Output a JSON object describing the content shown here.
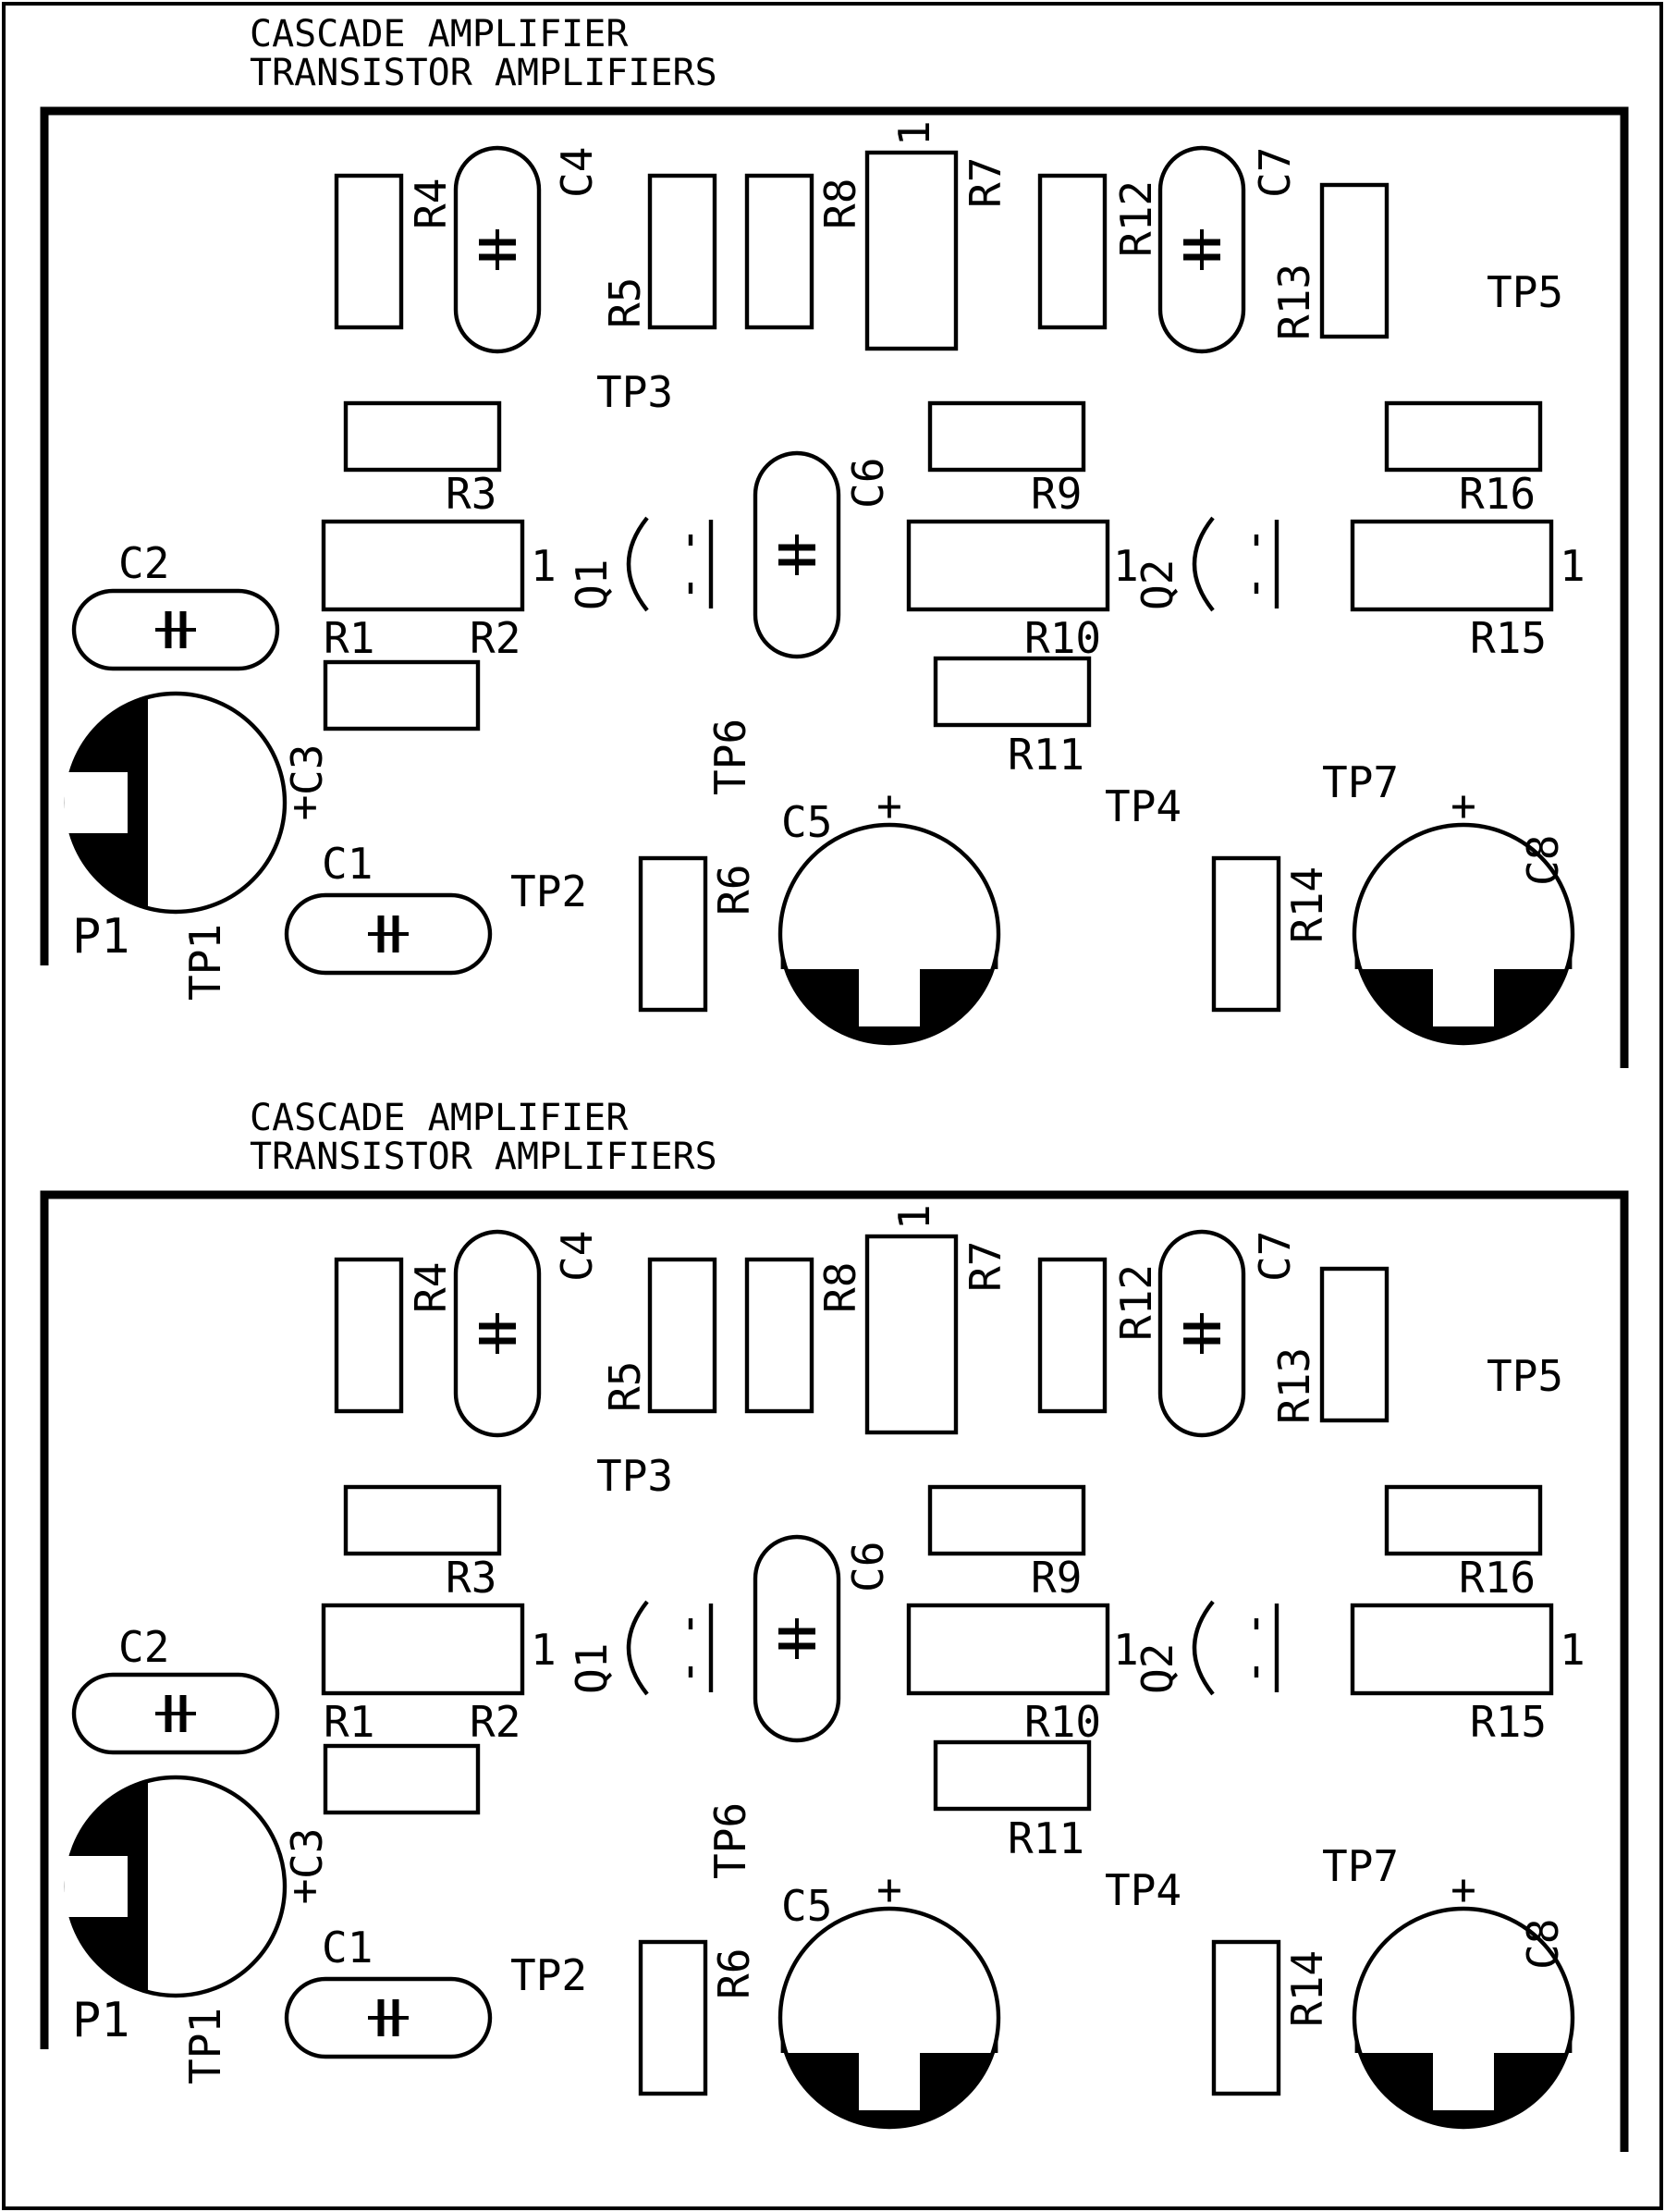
{
  "panels": [
    {
      "title_line1": "CASCADE AMPLIFIER",
      "title_line2": "TRANSISTOR AMPLIFIERS",
      "labels": {
        "R1": "R1",
        "R2": "R2",
        "R3": "R3",
        "R4": "R4",
        "R5": "R5",
        "R6": "R6",
        "R7": "R7",
        "R8": "R8",
        "R9": "R9",
        "R10": "R10",
        "R11": "R11",
        "R12": "R12",
        "R13": "R13",
        "R14": "R14",
        "R15": "R15",
        "R16": "R16",
        "C1": "C1",
        "C2": "C2",
        "C3": "C3",
        "C4": "C4",
        "C5": "C5",
        "C6": "C6",
        "C7": "C7",
        "C8": "C8",
        "Q1": "Q1",
        "Q2": "Q2",
        "P1": "P1",
        "TP1": "TP1",
        "TP2": "TP2",
        "TP3": "TP3",
        "TP4": "TP4",
        "TP5": "TP5",
        "TP6": "TP6",
        "TP7": "TP7",
        "pin1": "1",
        "plus": "+"
      }
    },
    {
      "title_line1": "CASCADE AMPLIFIER",
      "title_line2": "TRANSISTOR AMPLIFIERS",
      "labels": {
        "R1": "R1",
        "R2": "R2",
        "R3": "R3",
        "R4": "R4",
        "R5": "R5",
        "R6": "R6",
        "R7": "R7",
        "R8": "R8",
        "R9": "R9",
        "R10": "R10",
        "R11": "R11",
        "R12": "R12",
        "R13": "R13",
        "R14": "R14",
        "R15": "R15",
        "R16": "R16",
        "C1": "C1",
        "C2": "C2",
        "C3": "C3",
        "C4": "C4",
        "C5": "C5",
        "C6": "C6",
        "C7": "C7",
        "C8": "C8",
        "Q1": "Q1",
        "Q2": "Q2",
        "P1": "P1",
        "TP1": "TP1",
        "TP2": "TP2",
        "TP3": "TP3",
        "TP4": "TP4",
        "TP5": "TP5",
        "TP6": "TP6",
        "TP7": "TP7",
        "pin1": "1",
        "plus": "+"
      }
    }
  ]
}
